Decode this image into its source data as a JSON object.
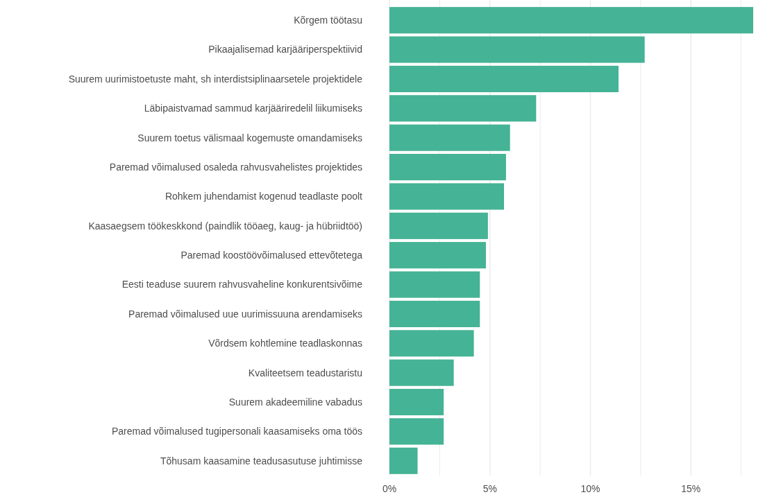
{
  "chart_data": {
    "type": "bar",
    "orientation": "horizontal",
    "categories": [
      "Kõrgem töötasu",
      "Pikaajalisemad karjääriperspektiivid",
      "Suurem uurimistoetuste maht, sh interdistsiplinaarsetele projektidele",
      "Läbipaistvamad sammud karjääriredelil liikumiseks",
      "Suurem toetus välismaal kogemuste omandamiseks",
      "Paremad võimalused osaleda rahvusvahelistes projektides",
      "Rohkem juhendamist kogenud teadlaste poolt",
      "Kaasaegsem töökeskkond (paindlik tööaeg, kaug- ja hübriidtöö)",
      "Paremad koostöövõimalused ettevõtetega",
      "Eesti teaduse suurem rahvusvaheline konkurentsivõime",
      "Paremad võimalused uue uurimissuuna arendamiseks",
      "Võrdsem kohtlemine teadlaskonnas",
      "Kvaliteetsem teadustaristu",
      "Suurem akadeemiline vabadus",
      "Paremad võimalused tugipersonali kaasamiseks oma töös",
      "Tõhusam kaasamine teadusasutuse juhtimisse"
    ],
    "values": [
      18.1,
      12.7,
      11.4,
      7.3,
      6.0,
      5.8,
      5.7,
      4.9,
      4.8,
      4.5,
      4.5,
      4.2,
      3.2,
      2.7,
      2.7,
      1.4
    ],
    "color": "#45b395",
    "xlim": [
      0,
      18.1
    ],
    "xticks": [
      {
        "value": 0,
        "label": "0%"
      },
      {
        "value": 2.5,
        "label": null
      },
      {
        "value": 5,
        "label": "5%"
      },
      {
        "value": 7.5,
        "label": null
      },
      {
        "value": 10,
        "label": "10%"
      },
      {
        "value": 12.5,
        "label": null
      },
      {
        "value": 15,
        "label": "15%"
      },
      {
        "value": 17.5,
        "label": null
      }
    ],
    "grid": "x"
  }
}
